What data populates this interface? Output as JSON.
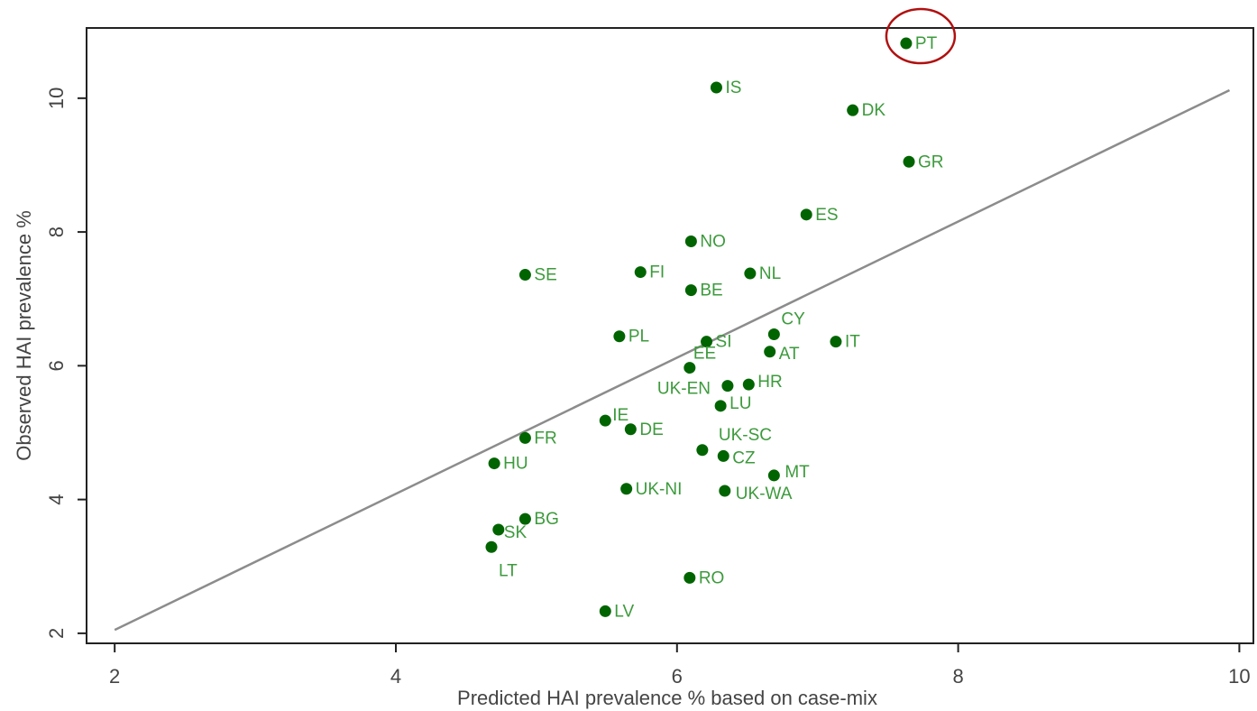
{
  "chart_data": {
    "type": "scatter",
    "title": "",
    "xlabel": "Predicted HAI prevalence % based on case-mix",
    "ylabel": "Observed HAI prevalence %",
    "xlim": [
      1.8,
      10.1
    ],
    "ylim": [
      1.85,
      11.05
    ],
    "xticks": [
      2,
      4,
      6,
      8,
      10
    ],
    "yticks": [
      2,
      4,
      6,
      8,
      10
    ],
    "grid": false,
    "point_color": "#006400",
    "label_color": "#3c9a3c",
    "line_color": "#8c8c8c",
    "highlight_color": "#b01010",
    "reference_line": {
      "x": [
        2,
        9.93
      ],
      "y": [
        2.05,
        10.12
      ]
    },
    "highlight": "PT",
    "points": [
      {
        "label": "PT",
        "x": 7.63,
        "y": 10.82
      },
      {
        "label": "IS",
        "x": 6.28,
        "y": 10.16
      },
      {
        "label": "DK",
        "x": 7.25,
        "y": 9.82
      },
      {
        "label": "GR",
        "x": 7.65,
        "y": 9.05
      },
      {
        "label": "ES",
        "x": 6.92,
        "y": 8.26
      },
      {
        "label": "NO",
        "x": 6.1,
        "y": 7.86
      },
      {
        "label": "SE",
        "x": 4.92,
        "y": 7.36
      },
      {
        "label": "FI",
        "x": 5.74,
        "y": 7.4
      },
      {
        "label": "NL",
        "x": 6.52,
        "y": 7.38
      },
      {
        "label": "BE",
        "x": 6.1,
        "y": 7.13
      },
      {
        "label": "CY",
        "x": 6.69,
        "y": 6.47
      },
      {
        "label": "PL",
        "x": 5.59,
        "y": 6.44
      },
      {
        "label": "SI",
        "x": 6.21,
        "y": 6.36
      },
      {
        "label": "IT",
        "x": 7.13,
        "y": 6.36
      },
      {
        "label": "AT",
        "x": 6.66,
        "y": 6.21
      },
      {
        "label": "EE",
        "x": 6.09,
        "y": 5.97
      },
      {
        "label": "UK-EN",
        "x": 6.36,
        "y": 5.7
      },
      {
        "label": "HR",
        "x": 6.51,
        "y": 5.72
      },
      {
        "label": "LU",
        "x": 6.31,
        "y": 5.4
      },
      {
        "label": "IE",
        "x": 5.49,
        "y": 5.18
      },
      {
        "label": "DE",
        "x": 5.67,
        "y": 5.05
      },
      {
        "label": "FR",
        "x": 4.92,
        "y": 4.92
      },
      {
        "label": "UK-SC",
        "x": 6.18,
        "y": 4.74
      },
      {
        "label": "CZ",
        "x": 6.33,
        "y": 4.65
      },
      {
        "label": "HU",
        "x": 4.7,
        "y": 4.54
      },
      {
        "label": "MT",
        "x": 6.69,
        "y": 4.36
      },
      {
        "label": "UK-NI",
        "x": 5.64,
        "y": 4.16
      },
      {
        "label": "UK-WA",
        "x": 6.34,
        "y": 4.13
      },
      {
        "label": "BG",
        "x": 4.92,
        "y": 3.71
      },
      {
        "label": "SK",
        "x": 4.73,
        "y": 3.55
      },
      {
        "label": "LT",
        "x": 4.68,
        "y": 3.29
      },
      {
        "label": "RO",
        "x": 6.09,
        "y": 2.83
      },
      {
        "label": "LV",
        "x": 5.49,
        "y": 2.33
      }
    ]
  }
}
